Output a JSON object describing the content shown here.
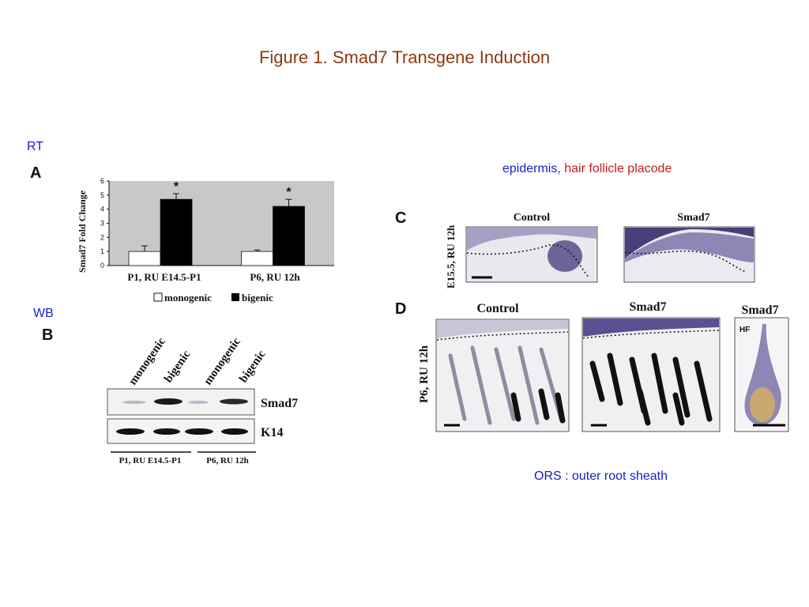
{
  "title": "Figure 1.  Smad7 Transgene Induction",
  "notes": {
    "rt": "RT",
    "wb": "WB",
    "epidermis": "epidermis",
    "comma": ",",
    "placode": " hair follicle placode",
    "ors": "ORS : outer root sheath"
  },
  "colors": {
    "title": "#8B3A12",
    "note_blue": "#1a1acc",
    "note_red": "#cc1a1a"
  },
  "panel_a": {
    "letter": "A",
    "chart_data": {
      "type": "bar",
      "ylabel": "Smad7 Fold Change",
      "ylim": [
        0,
        6
      ],
      "yticks": [
        0,
        1,
        2,
        3,
        4,
        5,
        6
      ],
      "categories": [
        "P1, RU E14.5-P1",
        "P6, RU 12h"
      ],
      "series": [
        {
          "name": "monogenic",
          "color": "#ffffff",
          "values": [
            1.0,
            1.0
          ],
          "errors": [
            0.4,
            0.1
          ]
        },
        {
          "name": "bigenic",
          "color": "#000000",
          "values": [
            4.7,
            4.2
          ],
          "errors": [
            0.4,
            0.5
          ]
        }
      ],
      "significance": [
        "*",
        "*"
      ],
      "legend": "bottom",
      "grid": false
    }
  },
  "panel_b": {
    "letter": "B",
    "lanes": [
      "monogenic",
      "bigenic",
      "monogenic",
      "bigenic"
    ],
    "bands": [
      "Smad7",
      "K14"
    ],
    "groups": [
      "P1, RU E14.5-P1",
      "P6, RU 12h"
    ]
  },
  "panel_c": {
    "letter": "C",
    "side": "E15.5, RU 12h",
    "control": "Control",
    "smad7": "Smad7"
  },
  "panel_d": {
    "letter": "D",
    "side": "P6, RU 12h",
    "control": "Control",
    "smad7": "Smad7",
    "smad7_hf": "Smad7",
    "hf": "HF"
  }
}
